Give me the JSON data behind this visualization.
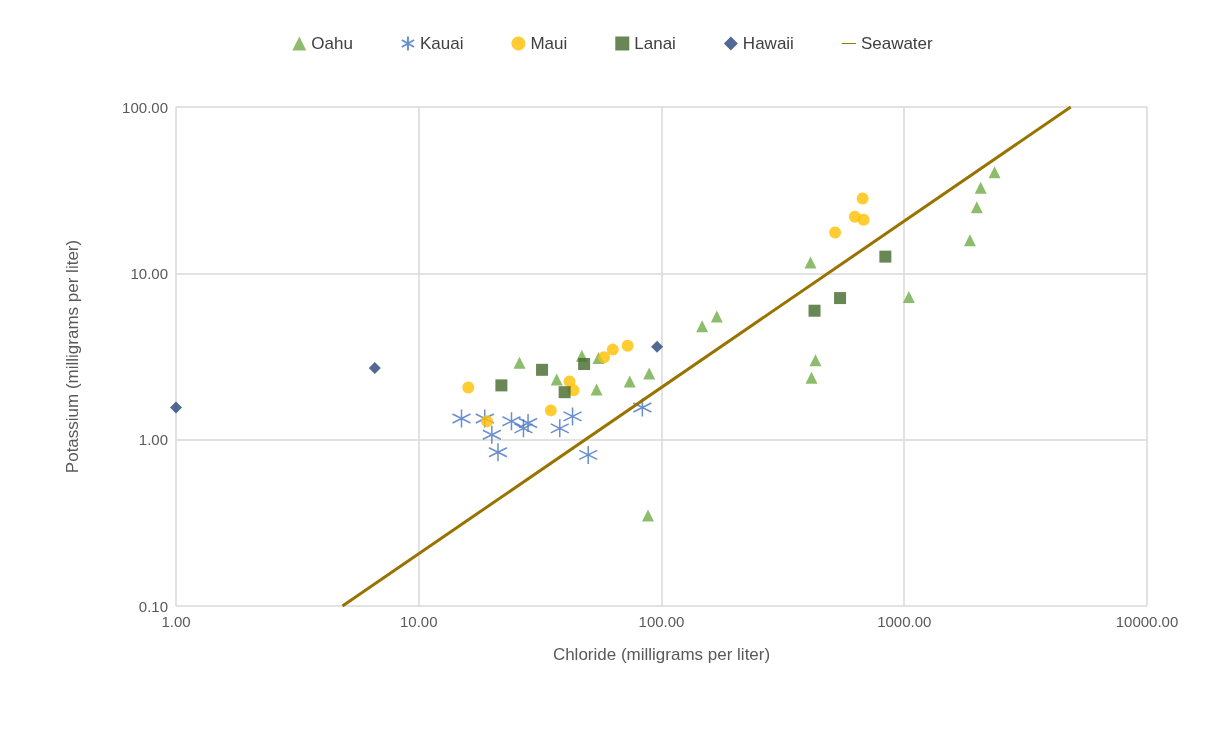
{
  "chart_data": {
    "type": "scatter",
    "xlabel": "Chloride (milligrams per liter)",
    "ylabel": "Potassium (milligrams per liter)",
    "log": "xy",
    "grid": true,
    "legend": "top",
    "xlim": [
      1,
      10000
    ],
    "xticks": [
      {
        "value": 1,
        "label": "1.00"
      },
      {
        "value": 10,
        "label": "10.00"
      },
      {
        "value": 100,
        "label": "100.00"
      },
      {
        "value": 1000,
        "label": "1000.00"
      },
      {
        "value": 10000,
        "label": "10000.00"
      }
    ],
    "ylim": [
      0.1,
      100
    ],
    "yticks": [
      {
        "value": 0.1,
        "label": "0.10"
      },
      {
        "value": 1,
        "label": "1.00"
      },
      {
        "value": 10,
        "label": "10.00"
      },
      {
        "value": 100,
        "label": "100.00"
      }
    ],
    "series": [
      {
        "name": "Oahu",
        "marker": "triangle",
        "color": "#70ad47",
        "x": [
          26,
          47,
          55,
          37,
          54,
          74,
          89,
          88,
          147,
          169,
          411,
          431,
          415,
          1045,
          1865,
          1990,
          2065,
          2355
        ],
        "values": [
          2.9,
          3.2,
          3.1,
          2.3,
          2.0,
          2.24,
          2.5,
          0.35,
          4.8,
          5.5,
          11.6,
          3.0,
          2.36,
          7.2,
          15.8,
          25,
          32.7,
          40.5
        ]
      },
      {
        "name": "Kauai",
        "marker": "cross",
        "color": "#4472c4",
        "x": [
          15,
          18.7,
          20,
          21.2,
          24.1,
          27,
          28.2,
          38.1,
          43,
          49.9,
          83.4
        ],
        "values": [
          1.34,
          1.34,
          1.07,
          0.84,
          1.29,
          1.17,
          1.26,
          1.17,
          1.38,
          0.81,
          1.56
        ]
      },
      {
        "name": "Maui",
        "marker": "circle",
        "color": "#ffc000",
        "x": [
          16,
          19.1,
          35,
          41.8,
          43.4,
          58,
          63,
          72.5,
          519,
          626,
          680,
          674
        ],
        "values": [
          2.06,
          1.29,
          1.5,
          2.24,
          1.98,
          3.13,
          3.48,
          3.67,
          17.6,
          21.9,
          21,
          28.2
        ]
      },
      {
        "name": "Lanai",
        "marker": "square",
        "color": "#43682b",
        "x": [
          21.9,
          32.2,
          39.9,
          48,
          427,
          544,
          836
        ],
        "values": [
          2.12,
          2.63,
          1.93,
          2.85,
          5.96,
          7.1,
          12.6
        ]
      },
      {
        "name": "Hawaii",
        "marker": "diamond",
        "color": "#264478",
        "x": [
          1,
          6.59,
          95.9
        ],
        "values": [
          1.56,
          2.7,
          3.62
        ]
      },
      {
        "name": "Seawater",
        "type": "line",
        "marker": "none",
        "line_style": "solid",
        "color": "#997300",
        "x": [
          4.85,
          4850
        ],
        "values": [
          0.1,
          100
        ]
      }
    ]
  }
}
